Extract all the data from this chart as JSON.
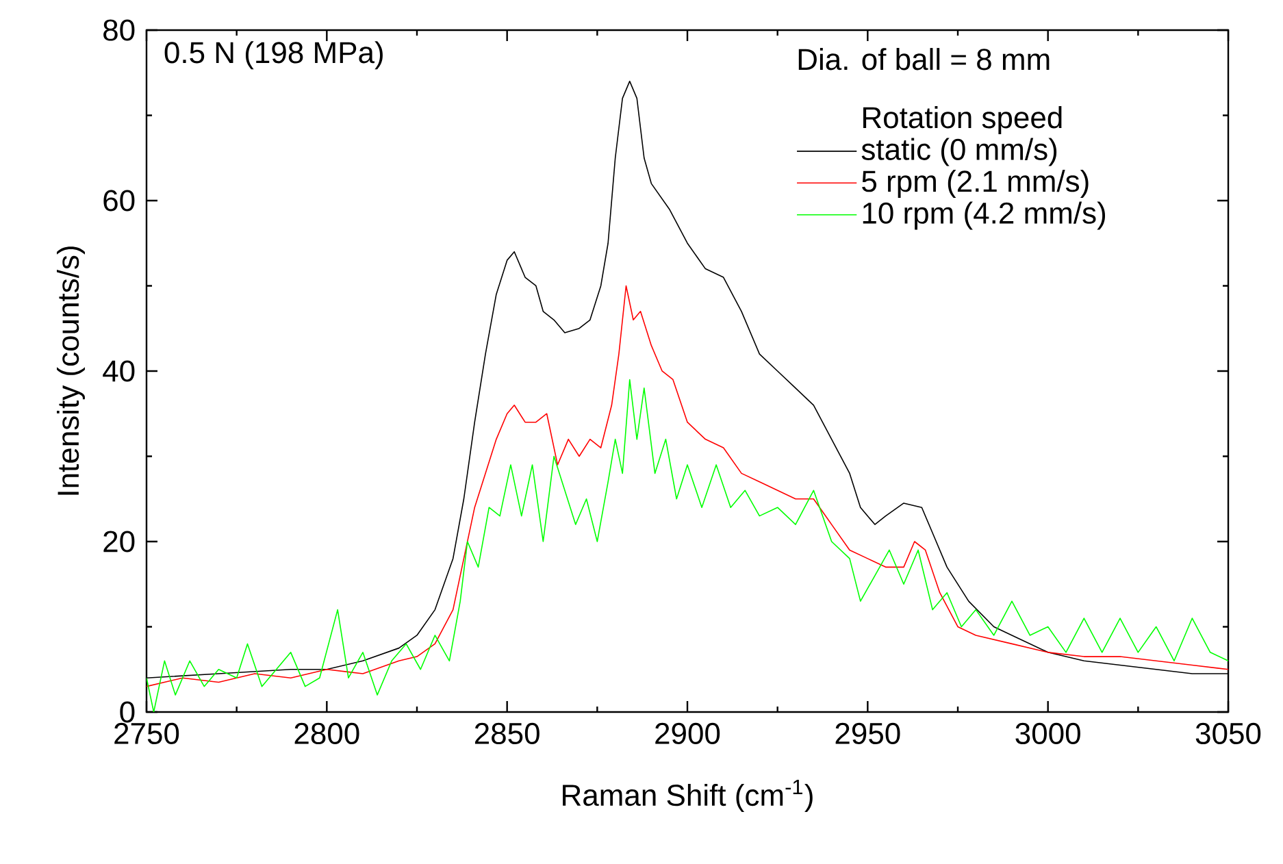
{
  "chart_data": {
    "type": "line",
    "xlabel": "Raman Shift (cm$^{-1}$)",
    "ylabel": "Intensity (counts/s)",
    "legend_title": "Rotation speed",
    "annotations": [
      "0.5 N (198 MPa)",
      "Dia. of ball = 8 mm"
    ],
    "xlim": [
      2750,
      3050
    ],
    "ylim": [
      0,
      80
    ],
    "xticks": [
      2750,
      2800,
      2850,
      2900,
      2950,
      3000,
      3050
    ],
    "yticks": [
      0,
      20,
      40,
      60,
      80
    ],
    "legend": "top right",
    "marker": "none",
    "line_style": "solid",
    "series": [
      {
        "name": "static (0 mm/s)",
        "color": "#000000",
        "x": [
          2750,
          2770,
          2790,
          2800,
          2810,
          2820,
          2825,
          2830,
          2835,
          2838,
          2841,
          2844,
          2847,
          2850,
          2852,
          2855,
          2858,
          2860,
          2863,
          2866,
          2870,
          2873,
          2876,
          2878,
          2880,
          2882,
          2884,
          2886,
          2888,
          2890,
          2895,
          2900,
          2905,
          2910,
          2915,
          2920,
          2925,
          2930,
          2935,
          2940,
          2945,
          2948,
          2952,
          2955,
          2960,
          2965,
          2968,
          2972,
          2978,
          2985,
          2990,
          3000,
          3010,
          3020,
          3030,
          3040,
          3050
        ],
        "values": [
          4,
          4.5,
          5,
          5,
          6,
          7.5,
          9,
          12,
          18,
          25,
          34,
          42,
          49,
          53,
          54,
          51,
          50,
          47,
          46,
          44.5,
          45,
          46,
          50,
          55,
          65,
          72,
          74,
          72,
          65,
          62,
          59,
          55,
          52,
          51,
          47,
          42,
          40,
          38,
          36,
          32,
          28,
          24,
          22,
          23,
          24.5,
          24,
          21,
          17,
          13,
          10,
          9,
          7,
          6,
          5.5,
          5,
          4.5,
          4.5
        ]
      },
      {
        "name": "5 rpm  (2.1 mm/s)",
        "color": "#ff0000",
        "x": [
          2750,
          2760,
          2770,
          2780,
          2790,
          2800,
          2810,
          2820,
          2825,
          2830,
          2835,
          2838,
          2841,
          2844,
          2847,
          2850,
          2852,
          2855,
          2858,
          2861,
          2864,
          2867,
          2870,
          2873,
          2876,
          2879,
          2881,
          2883,
          2885,
          2887,
          2890,
          2893,
          2896,
          2900,
          2905,
          2910,
          2915,
          2920,
          2925,
          2930,
          2935,
          2940,
          2945,
          2950,
          2955,
          2960,
          2963,
          2966,
          2970,
          2975,
          2980,
          2990,
          3000,
          3010,
          3020,
          3030,
          3040,
          3050
        ],
        "values": [
          3,
          4,
          3.5,
          4.5,
          4,
          5,
          4.5,
          6,
          6.5,
          8,
          12,
          18,
          24,
          28,
          32,
          35,
          36,
          34,
          34,
          35,
          29,
          32,
          30,
          32,
          31,
          36,
          42,
          50,
          46,
          47,
          43,
          40,
          39,
          34,
          32,
          31,
          28,
          27,
          26,
          25,
          25,
          22,
          19,
          18,
          17,
          17,
          20,
          19,
          14,
          10,
          9,
          8,
          7,
          6.5,
          6.5,
          6,
          5.5,
          5
        ]
      },
      {
        "name": "10 rpm (4.2 mm/s)",
        "color": "#00ff00",
        "x": [
          2750,
          2752,
          2755,
          2758,
          2762,
          2766,
          2770,
          2775,
          2778,
          2782,
          2786,
          2790,
          2794,
          2798,
          2803,
          2806,
          2810,
          2814,
          2818,
          2822,
          2826,
          2830,
          2834,
          2837,
          2839,
          2842,
          2845,
          2848,
          2851,
          2854,
          2857,
          2860,
          2863,
          2866,
          2869,
          2872,
          2875,
          2878,
          2880,
          2882,
          2884,
          2886,
          2888,
          2891,
          2894,
          2897,
          2900,
          2904,
          2908,
          2912,
          2916,
          2920,
          2925,
          2930,
          2935,
          2940,
          2945,
          2948,
          2952,
          2956,
          2960,
          2964,
          2968,
          2972,
          2976,
          2980,
          2985,
          2990,
          2995,
          3000,
          3005,
          3010,
          3015,
          3020,
          3025,
          3030,
          3035,
          3040,
          3045,
          3050
        ],
        "values": [
          4,
          0,
          6,
          2,
          6,
          3,
          5,
          4,
          8,
          3,
          5,
          7,
          3,
          4,
          12,
          4,
          7,
          2,
          6,
          8,
          5,
          9,
          6,
          13,
          20,
          17,
          24,
          23,
          29,
          23,
          29,
          20,
          30,
          26,
          22,
          25,
          20,
          27,
          32,
          28,
          39,
          32,
          38,
          28,
          32,
          25,
          29,
          24,
          29,
          24,
          26,
          23,
          24,
          22,
          26,
          20,
          18,
          13,
          16,
          19,
          15,
          19,
          12,
          14,
          10,
          12,
          9,
          13,
          9,
          10,
          7,
          11,
          7,
          11,
          7,
          10,
          6,
          11,
          7,
          6
        ]
      }
    ]
  }
}
